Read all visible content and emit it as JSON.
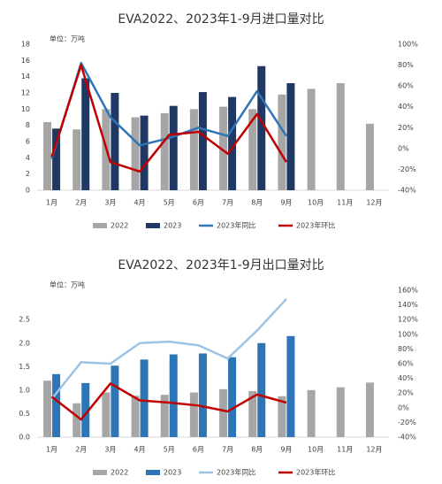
{
  "chart_data": [
    {
      "type": "bar",
      "title": "EVA2022、2023年1-9月进口量对比",
      "unit": "单位：万吨",
      "categories": [
        "1月",
        "2月",
        "3月",
        "4月",
        "5月",
        "6月",
        "7月",
        "8月",
        "9月",
        "10月",
        "11月",
        "12月"
      ],
      "series": [
        {
          "name": "2022",
          "type": "bar",
          "color": "#a6a6a6",
          "values": [
            8.4,
            7.5,
            10,
            9,
            9.5,
            10,
            10.3,
            10,
            11.8,
            12.5,
            13.2,
            8.2
          ]
        },
        {
          "name": "2023",
          "type": "bar",
          "color": "#1f3864",
          "values": [
            7.6,
            13.8,
            12,
            9.2,
            10.4,
            12.1,
            11.5,
            15.3,
            13.2,
            null,
            null,
            null
          ]
        },
        {
          "name": "2023年同比",
          "type": "line",
          "axis": "y2",
          "color": "#2e75b6",
          "values": [
            -10,
            82,
            30,
            3,
            10,
            20,
            12,
            55,
            12,
            null,
            null,
            null
          ]
        },
        {
          "name": "2023年环比",
          "type": "line",
          "axis": "y2",
          "color": "#c00000",
          "values": [
            -8,
            80,
            -13,
            -22,
            13,
            16,
            -5,
            33,
            -13,
            null,
            null,
            null
          ]
        }
      ],
      "ylim": [
        0,
        18
      ],
      "yticks": [
        0,
        2,
        4,
        6,
        8,
        10,
        12,
        14,
        16,
        18
      ],
      "y2lim": [
        -40,
        100
      ],
      "y2ticks": [
        {
          "value": -40,
          "label": "-40%"
        },
        {
          "value": -20,
          "label": "-20%"
        },
        {
          "value": 0,
          "label": "0%"
        },
        {
          "value": 20,
          "label": "20%"
        },
        {
          "value": 40,
          "label": "40%"
        },
        {
          "value": 60,
          "label": "60%"
        },
        {
          "value": 80,
          "label": "80%"
        },
        {
          "value": 100,
          "label": "100%"
        }
      ],
      "grid": false
    },
    {
      "type": "bar",
      "title": "EVA2022、2023年1-9月出口量对比",
      "unit": "单位：万吨",
      "categories": [
        "1月",
        "2月",
        "3月",
        "4月",
        "5月",
        "6月",
        "7月",
        "8月",
        "9月",
        "10月",
        "11月",
        "12月"
      ],
      "series": [
        {
          "name": "2022",
          "type": "bar",
          "color": "#a6a6a6",
          "values": [
            1.2,
            0.72,
            0.95,
            0.88,
            0.9,
            0.95,
            1.02,
            0.98,
            0.87,
            1.0,
            1.06,
            1.16
          ]
        },
        {
          "name": "2023",
          "type": "bar",
          "color": "#2e75b6",
          "values": [
            1.34,
            1.15,
            1.52,
            1.65,
            1.76,
            1.78,
            1.7,
            2.0,
            2.15,
            null,
            null,
            null
          ]
        },
        {
          "name": "2023年同比",
          "type": "line",
          "axis": "y2",
          "color": "#9dc3e6",
          "values": [
            12,
            62,
            60,
            88,
            90,
            85,
            67,
            105,
            148,
            null,
            null,
            null
          ]
        },
        {
          "name": "2023年环比",
          "type": "line",
          "axis": "y2",
          "color": "#c00000",
          "values": [
            15,
            -16,
            33,
            10,
            7,
            3,
            -5,
            18,
            7,
            null,
            null,
            null
          ]
        }
      ],
      "ylim": [
        0,
        3.125
      ],
      "yticks": [
        {
          "value": 0,
          "label": "0.0"
        },
        0.5,
        {
          "value": 1,
          "label": "1.0"
        },
        1.5,
        {
          "value": 2,
          "label": "2.0"
        },
        2.5
      ],
      "y2lim": [
        -40,
        160
      ],
      "y2ticks": [
        {
          "value": -40,
          "label": "-40%"
        },
        {
          "value": -20,
          "label": "-20%"
        },
        {
          "value": 0,
          "label": "0%"
        },
        {
          "value": 20,
          "label": "20%"
        },
        {
          "value": 40,
          "label": "40%"
        },
        {
          "value": 60,
          "label": "60%"
        },
        {
          "value": 80,
          "label": "80%"
        },
        {
          "value": 100,
          "label": "100%"
        },
        {
          "value": 120,
          "label": "120%"
        },
        {
          "value": 140,
          "label": "140%"
        },
        {
          "value": 160,
          "label": "160%"
        }
      ],
      "grid": false
    }
  ]
}
